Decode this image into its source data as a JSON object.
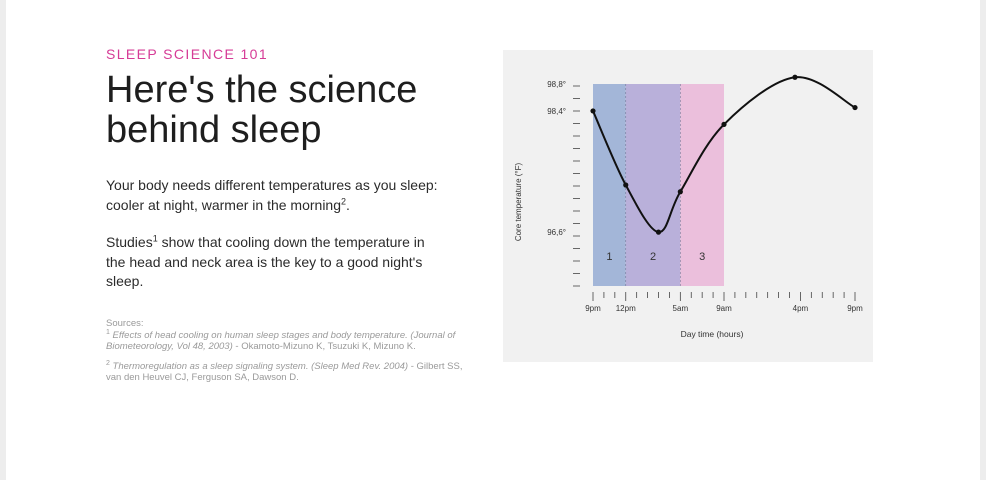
{
  "header": {
    "kicker": "SLEEP SCIENCE 101",
    "title": "Here's the science behind sleep"
  },
  "body": {
    "p1_text": "Your body needs different temperatures as you sleep: cooler at night, warmer in the morning",
    "p1_sup": "2",
    "p1_end": ".",
    "p2_start": "Studies",
    "p2_sup": "1",
    "p2_text": " show that cooling down the temperature in the head and neck area is the key to a good night's sleep."
  },
  "sources": {
    "heading": "Sources:",
    "items": [
      {
        "num": "1",
        "italic": "Effects of head cooling on human sleep stages and body temperature. (Journal of Biometeorology, Vol 48, 2003)",
        "rest": " - Okamoto-Mizuno K, Tsuzuki K, Mizuno K."
      },
      {
        "num": "2",
        "italic": "Thermoregulation as a sleep signaling system. (Sleep Med Rev. 2004)",
        "rest": " - Gilbert SS, van den Heuvel CJ, Ferguson SA, Dawson D."
      }
    ]
  },
  "chart_data": {
    "type": "line",
    "title": "",
    "xlabel": "Day time (hours)",
    "ylabel": "Core temperature (°F)",
    "x_tick_labels": [
      {
        "label": "9pm",
        "hour": 0
      },
      {
        "label": "12pm",
        "hour": 3
      },
      {
        "label": "5am",
        "hour": 8
      },
      {
        "label": "9am",
        "hour": 12
      },
      {
        "label": "4pm",
        "hour": 19
      },
      {
        "label": "9pm",
        "hour": 24
      }
    ],
    "y_tick_labels": [
      {
        "label": "98,8°",
        "value": 98.8
      },
      {
        "label": "98,4°",
        "value": 98.4
      },
      {
        "label": "96,6°",
        "value": 96.6
      }
    ],
    "xlim": [
      0,
      24
    ],
    "ylim": [
      95.8,
      98.8
    ],
    "series": [
      {
        "points": [
          [
            0,
            98.4
          ],
          [
            3,
            97.3
          ],
          [
            6,
            96.6
          ],
          [
            8,
            97.2
          ],
          [
            12,
            98.2
          ],
          [
            18.5,
            98.9
          ],
          [
            24,
            98.45
          ]
        ]
      }
    ],
    "bands": [
      {
        "label": "1",
        "from": 0,
        "to": 3,
        "color": "#a3b6d8"
      },
      {
        "label": "2",
        "from": 3,
        "to": 8,
        "color": "#b9b0da"
      },
      {
        "label": "3",
        "from": 8,
        "to": 12,
        "color": "#ebbfdc"
      }
    ],
    "grid": false
  }
}
